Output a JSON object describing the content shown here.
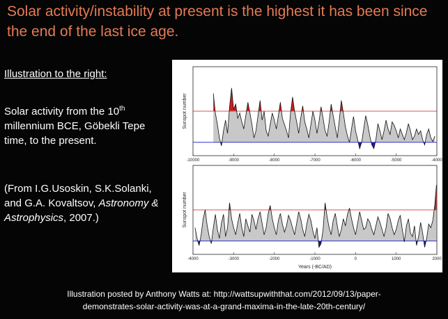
{
  "slide": {
    "title": "Solar activity/instability at present is the highest it has been since the end of the last ice age.",
    "illustration_heading": "Illustration to the right:",
    "description": {
      "part1": "Solar activity from the 10",
      "sup": "th",
      "part2": " millennium BCE, Göbekli Tepe time, to the present."
    },
    "citation": {
      "open": "(From I.G.Usoskin, S.K.Solanki, and G.A. Kovaltsov, ",
      "journal": "Astronomy & Astrophysics",
      "close": ", 2007.)"
    },
    "footer_line1": "Illustration posted by Anthony Watts at: http://wattsupwiththat.com/2012/09/13/paper-",
    "footer_line2": "demonstrates-solar-activity-was-at-a-grand-maxima-in-the-late-20th-century/"
  },
  "colors": {
    "title": "#e57b55",
    "background": "#050505",
    "high_fill": "#cc1f1f",
    "low_fill": "#1a1ab0",
    "mid_fill": "#c8c8c8",
    "high_line": "#e05050",
    "low_line": "#3030d0"
  },
  "chart_data": [
    {
      "type": "area",
      "title": "",
      "xlabel": "",
      "ylabel": "Sunspot number",
      "xlim": [
        -10000,
        -4000
      ],
      "ylim": [
        0,
        100
      ],
      "x_ticks": [
        "-10000",
        "-9000",
        "-8000",
        "-7000",
        "-6000",
        "-5000",
        "-4000"
      ],
      "x_tick_values": [
        -10000,
        -9000,
        -8000,
        -7000,
        -6000,
        -5000,
        -4000
      ],
      "high_threshold": 50,
      "low_threshold": 15,
      "x": [
        -9500,
        -9450,
        -9400,
        -9350,
        -9300,
        -9250,
        -9200,
        -9150,
        -9100,
        -9050,
        -9000,
        -8950,
        -8900,
        -8850,
        -8800,
        -8750,
        -8700,
        -8650,
        -8600,
        -8550,
        -8500,
        -8450,
        -8400,
        -8350,
        -8300,
        -8250,
        -8200,
        -8150,
        -8100,
        -8050,
        -8000,
        -7950,
        -7900,
        -7850,
        -7800,
        -7750,
        -7700,
        -7650,
        -7600,
        -7550,
        -7500,
        -7450,
        -7400,
        -7350,
        -7300,
        -7250,
        -7200,
        -7150,
        -7100,
        -7050,
        -7000,
        -6950,
        -6900,
        -6850,
        -6800,
        -6750,
        -6700,
        -6650,
        -6600,
        -6550,
        -6500,
        -6450,
        -6400,
        -6350,
        -6300,
        -6250,
        -6200,
        -6150,
        -6100,
        -6050,
        -6000,
        -5950,
        -5900,
        -5850,
        -5800,
        -5750,
        -5700,
        -5650,
        -5600,
        -5550,
        -5500,
        -5450,
        -5400,
        -5350,
        -5300,
        -5250,
        -5200,
        -5150,
        -5100,
        -5050,
        -5000,
        -4950,
        -4900,
        -4850,
        -4800,
        -4750,
        -4700,
        -4650,
        -4600,
        -4550,
        -4500,
        -4450,
        -4400,
        -4350,
        -4300,
        -4250,
        -4200,
        -4150,
        -4100,
        -4050
      ],
      "values": [
        70,
        48,
        35,
        20,
        11,
        28,
        40,
        25,
        55,
        76,
        52,
        58,
        42,
        48,
        38,
        30,
        45,
        60,
        48,
        35,
        20,
        28,
        45,
        62,
        40,
        50,
        28,
        22,
        35,
        48,
        40,
        30,
        45,
        60,
        42,
        35,
        28,
        20,
        48,
        66,
        50,
        38,
        25,
        42,
        56,
        38,
        30,
        20,
        35,
        50,
        40,
        25,
        38,
        55,
        42,
        28,
        22,
        38,
        58,
        45,
        32,
        20,
        40,
        62,
        48,
        32,
        22,
        15,
        30,
        44,
        28,
        18,
        8,
        15,
        30,
        45,
        35,
        22,
        12,
        8,
        18,
        36,
        28,
        18,
        28,
        40,
        30,
        24,
        38,
        34,
        28,
        20,
        30,
        24,
        18,
        26,
        36,
        28,
        18,
        22,
        30,
        24,
        28,
        18,
        12,
        24,
        30,
        20,
        16,
        22
      ]
    },
    {
      "type": "area",
      "title": "",
      "xlabel": "Years (-BC/AD)",
      "ylabel": "Sunspot number",
      "xlim": [
        -4000,
        2000
      ],
      "ylim": [
        0,
        100
      ],
      "x_ticks": [
        "-4000",
        "-3000",
        "-2000",
        "-1000",
        "0",
        "1000",
        "2000"
      ],
      "x_tick_values": [
        -4000,
        -3000,
        -2000,
        -1000,
        0,
        1000,
        2000
      ],
      "high_threshold": 50,
      "low_threshold": 15,
      "x": [
        -3950,
        -3900,
        -3850,
        -3800,
        -3750,
        -3700,
        -3650,
        -3600,
        -3550,
        -3500,
        -3450,
        -3400,
        -3350,
        -3300,
        -3250,
        -3200,
        -3150,
        -3100,
        -3050,
        -3000,
        -2950,
        -2900,
        -2850,
        -2800,
        -2750,
        -2700,
        -2650,
        -2600,
        -2550,
        -2500,
        -2450,
        -2400,
        -2350,
        -2300,
        -2250,
        -2200,
        -2150,
        -2100,
        -2050,
        -2000,
        -1950,
        -1900,
        -1850,
        -1800,
        -1750,
        -1700,
        -1650,
        -1600,
        -1550,
        -1500,
        -1450,
        -1400,
        -1350,
        -1300,
        -1250,
        -1200,
        -1150,
        -1100,
        -1050,
        -1000,
        -950,
        -900,
        -850,
        -800,
        -750,
        -700,
        -650,
        -600,
        -550,
        -500,
        -450,
        -400,
        -350,
        -300,
        -250,
        -200,
        -150,
        -100,
        -50,
        0,
        50,
        100,
        150,
        200,
        250,
        300,
        350,
        400,
        450,
        500,
        550,
        600,
        650,
        700,
        750,
        800,
        850,
        900,
        950,
        1000,
        1050,
        1100,
        1150,
        1200,
        1250,
        1300,
        1350,
        1400,
        1450,
        1500,
        1550,
        1600,
        1650,
        1700,
        1750,
        1800,
        1850,
        1900,
        1950,
        1990
      ],
      "values": [
        30,
        18,
        10,
        22,
        40,
        50,
        32,
        20,
        12,
        30,
        45,
        28,
        18,
        35,
        45,
        20,
        30,
        58,
        40,
        30,
        22,
        35,
        46,
        30,
        20,
        40,
        32,
        25,
        45,
        38,
        28,
        40,
        48,
        35,
        22,
        30,
        46,
        55,
        40,
        30,
        22,
        38,
        46,
        34,
        25,
        32,
        44,
        38,
        30,
        22,
        35,
        48,
        40,
        28,
        20,
        34,
        45,
        38,
        26,
        18,
        30,
        8,
        12,
        28,
        58,
        42,
        30,
        22,
        38,
        46,
        32,
        20,
        28,
        40,
        32,
        45,
        52,
        40,
        30,
        22,
        35,
        48,
        38,
        28,
        30,
        40,
        36,
        28,
        22,
        32,
        42,
        36,
        28,
        20,
        30,
        46,
        40,
        30,
        22,
        28,
        38,
        44,
        28,
        14,
        32,
        40,
        24,
        20,
        32,
        10,
        20,
        36,
        24,
        8,
        18,
        34,
        30,
        38,
        56,
        78
      ]
    }
  ]
}
